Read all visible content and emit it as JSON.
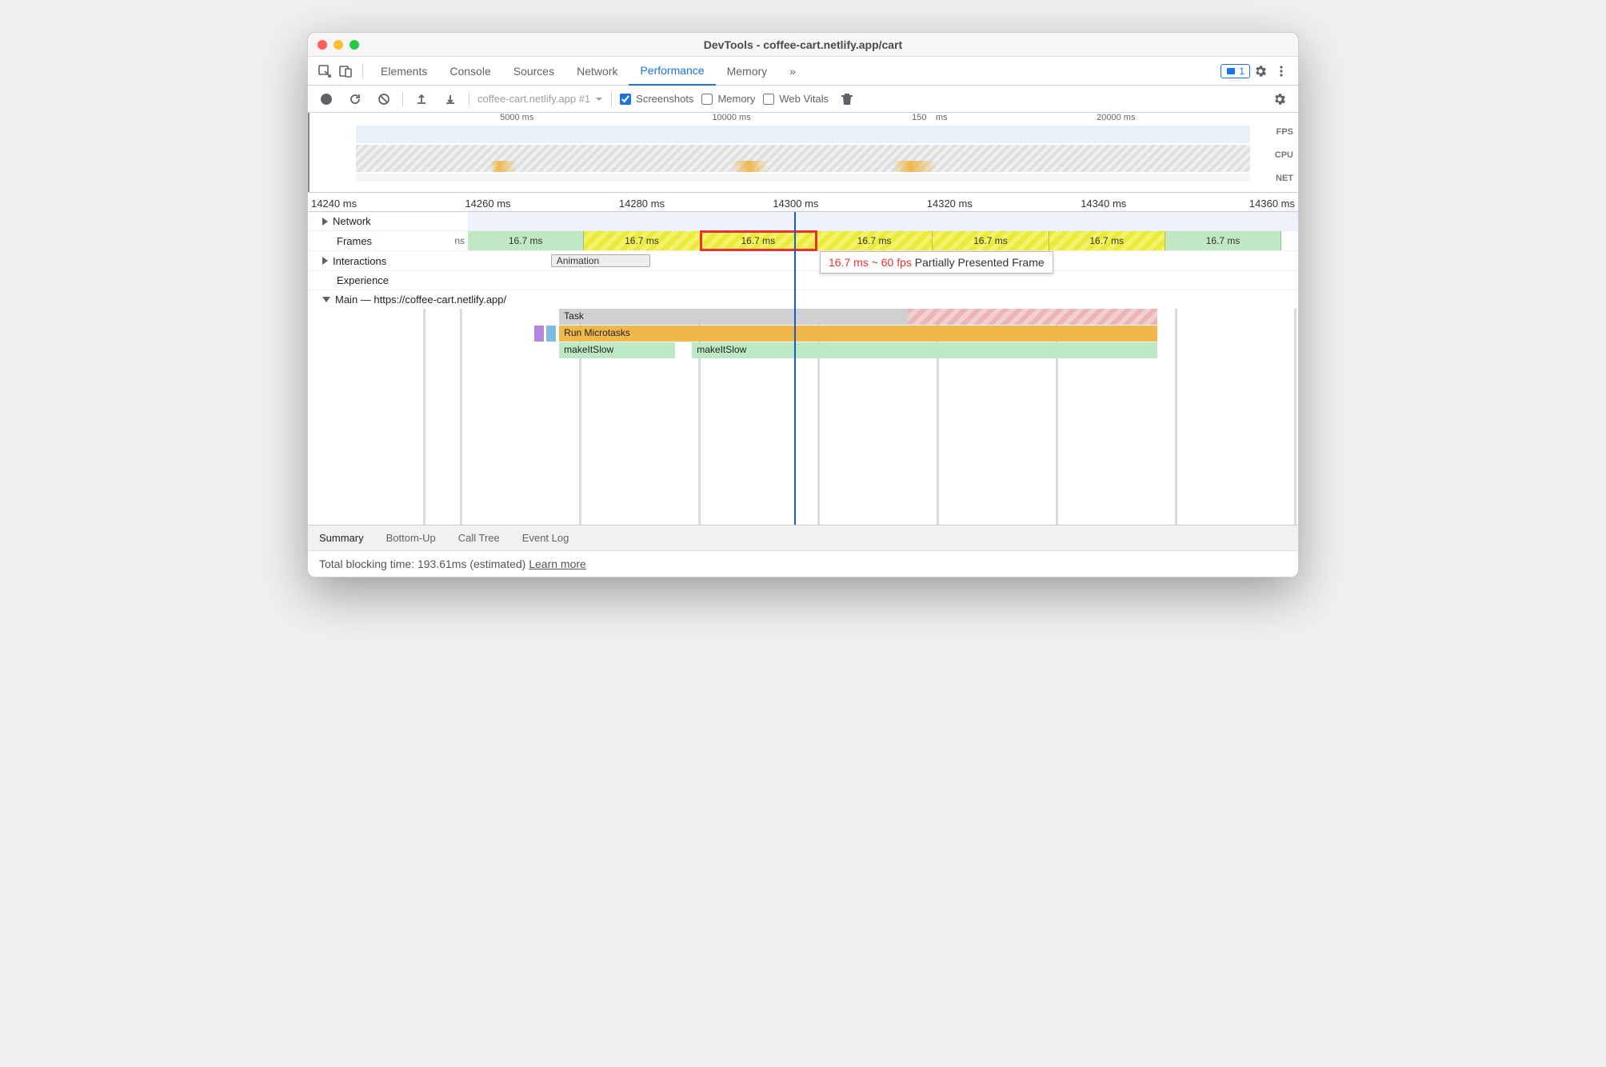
{
  "window": {
    "title": "DevTools - coffee-cart.netlify.app/cart"
  },
  "tabs": {
    "items": [
      "Elements",
      "Console",
      "Sources",
      "Network",
      "Performance",
      "Memory"
    ],
    "active_index": 4,
    "more_glyph": "»",
    "issues_count": "1"
  },
  "toolbar": {
    "profile_dropdown": "coffee-cart.netlify.app #1",
    "checkboxes": {
      "screenshots": {
        "label": "Screenshots",
        "checked": true
      },
      "memory": {
        "label": "Memory",
        "checked": false
      },
      "webvitals": {
        "label": "Web Vitals",
        "checked": false
      }
    }
  },
  "overview": {
    "ticks": [
      {
        "label": "5000 ms",
        "pct": 18
      },
      {
        "label": "10000 ms",
        "pct": 42
      },
      {
        "label": "150",
        "pct": 63
      },
      {
        "label": "ms",
        "pct": 65.5
      },
      {
        "label": "20000 ms",
        "pct": 85
      }
    ],
    "lane_labels": [
      "FPS",
      "CPU",
      "NET"
    ],
    "green_region": {
      "left_pct": 65,
      "width_pct": 33
    },
    "selection": {
      "left_pct": 62,
      "width_pct": 4
    },
    "colors": {
      "fps_bg": "#e8f0f8",
      "green": "rgba(120,200,120,0.5)"
    }
  },
  "ruler": {
    "ticks": [
      "14240 ms",
      "14260 ms",
      "14280 ms",
      "14300 ms",
      "14320 ms",
      "14340 ms",
      "14360 ms"
    ]
  },
  "tracks": {
    "network": {
      "label": "Network"
    },
    "frames": {
      "label": "Frames",
      "overflow_label": "ns",
      "cells": [
        {
          "text": "16.7 ms",
          "width_pct": 14,
          "solid": true
        },
        {
          "text": "16.7 ms",
          "width_pct": 14,
          "solid": false
        },
        {
          "text": "16.7 ms",
          "width_pct": 14,
          "solid": false,
          "highlighted": true
        },
        {
          "text": "16.7 ms",
          "width_pct": 14,
          "solid": false
        },
        {
          "text": "16.7 ms",
          "width_pct": 14,
          "solid": false
        },
        {
          "text": "16.7 ms",
          "width_pct": 14,
          "solid": false
        },
        {
          "text": "16.7 ms",
          "width_pct": 14,
          "solid": true
        }
      ],
      "tooltip": {
        "highlight": "16.7 ms ~ 60 fps",
        "rest": " Partially Presented Frame"
      }
    },
    "interactions": {
      "label": "Interactions",
      "animation_label": "Animation",
      "ani_left_pct": 10,
      "ani_width_pct": 12
    },
    "experience": {
      "label": "Experience"
    },
    "main": {
      "label": "Main — https://coffee-cart.netlify.app/",
      "rows": [
        {
          "bars": [
            {
              "text": "Task",
              "cls": "task",
              "left_pct": 11,
              "width_pct": 42
            },
            {
              "text": "",
              "cls": "task-warn",
              "left_pct": 53,
              "width_pct": 30
            }
          ]
        },
        {
          "bars": [
            {
              "text": "",
              "cls": "purple",
              "left_pct": 8,
              "width_pct": 1.2
            },
            {
              "text": "",
              "cls": "blue",
              "left_pct": 9.4,
              "width_pct": 1.2
            },
            {
              "text": "Run Microtasks",
              "cls": "micro",
              "left_pct": 11,
              "width_pct": 72
            }
          ]
        },
        {
          "bars": [
            {
              "text": "makeItSlow",
              "cls": "fn",
              "left_pct": 11,
              "width_pct": 14
            },
            {
              "text": "makeItSlow",
              "cls": "fn",
              "left_pct": 27,
              "width_pct": 56
            }
          ]
        }
      ]
    }
  },
  "bottom_tabs": {
    "items": [
      "Summary",
      "Bottom-Up",
      "Call Tree",
      "Event Log"
    ],
    "active_index": 0
  },
  "status": {
    "text": "Total blocking time: 193.61ms (estimated) ",
    "link": "Learn more"
  },
  "colors": {
    "accent": "#1a73e8",
    "playhead": "#1a5ad8",
    "highlight_border": "#e63232",
    "task_gray": "#d0d0d0",
    "microtask_orange": "#f0b84a",
    "fn_green": "#bce8c4",
    "frame_stripe_a": "#eaea3a",
    "frame_stripe_b": "#f3f36a",
    "frame_solid": "#c1e8c4"
  }
}
